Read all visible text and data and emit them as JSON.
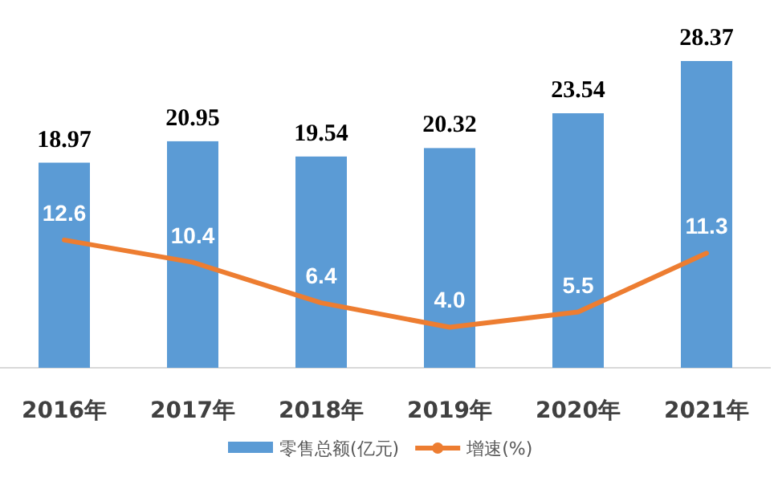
{
  "chart_data": {
    "type": "bar",
    "categories": [
      "2016年",
      "2017年",
      "2018年",
      "2019年",
      "2020年",
      "2021年"
    ],
    "series": [
      {
        "name": "零售总额(亿元)",
        "color": "#5b9bd5",
        "values": [
          18.97,
          20.95,
          19.54,
          20.32,
          23.54,
          28.37
        ],
        "value_labels": [
          "18.97",
          "20.95",
          "19.54",
          "20.32",
          "23.54",
          "28.37"
        ]
      },
      {
        "name": "增速(%)",
        "type": "line",
        "axis": "y2",
        "color": "#ed7d31",
        "values": [
          12.6,
          10.4,
          6.4,
          4.0,
          5.5,
          11.3
        ],
        "value_labels": [
          "12.6",
          "10.4",
          "6.4",
          "4.0",
          "5.5",
          "11.3"
        ]
      }
    ],
    "legend": "bottom",
    "grid": false,
    "marker": "none"
  }
}
